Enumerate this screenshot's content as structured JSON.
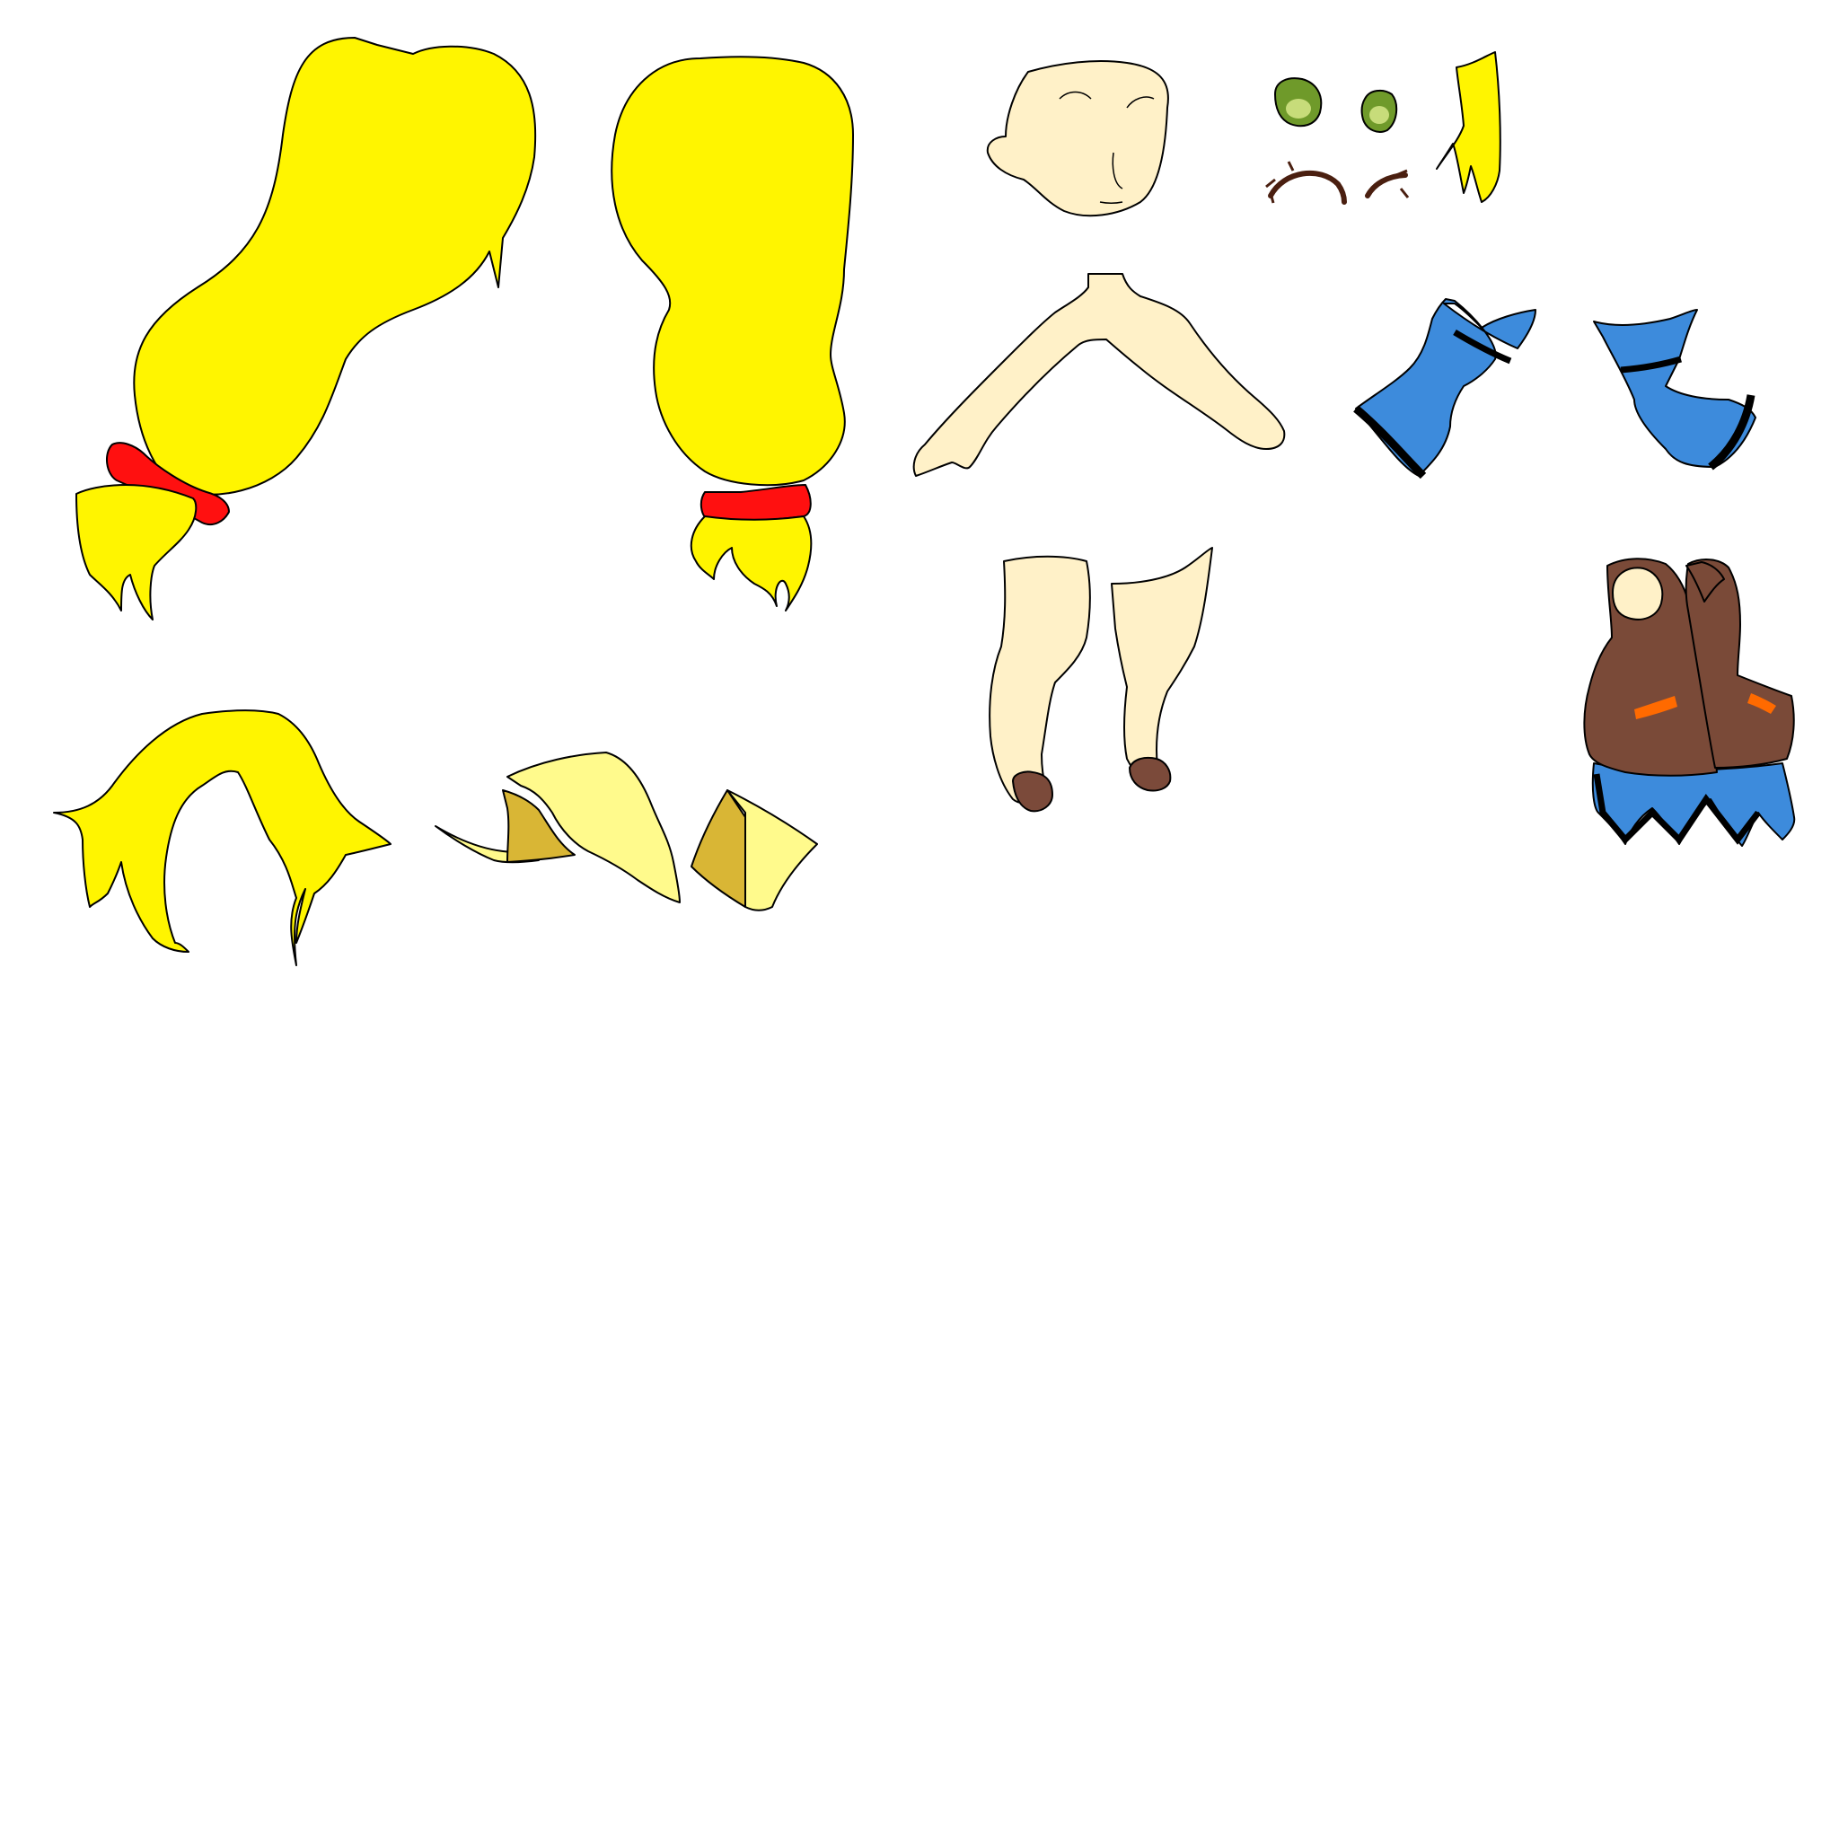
{
  "sheet": {
    "kind": "character-parts-sprite-sheet",
    "background": "#ffffff",
    "parts": [
      "left-pigtail",
      "right-pigtail",
      "front-bangs",
      "hat-pieces",
      "face",
      "eyes",
      "eyebrows",
      "side-hair-strand",
      "arms-torso",
      "left-sleeve",
      "right-sleeve",
      "legs",
      "vest-skirt"
    ]
  },
  "colors": {
    "hair": "#fff500",
    "hair_tie": "#ff1010",
    "skin": "#fff1c8",
    "hat_light": "#fffa8c",
    "hat_dark": "#d9b635",
    "eye_green": "#6f9a2a",
    "eyebrow": "#4a1f10",
    "sleeve_blue": "#3d8bdc",
    "shoe_brown": "#7b4a3a",
    "vest_brown": "#7a4a38",
    "vest_accent": "#ff6a00",
    "outline": "#000000"
  }
}
